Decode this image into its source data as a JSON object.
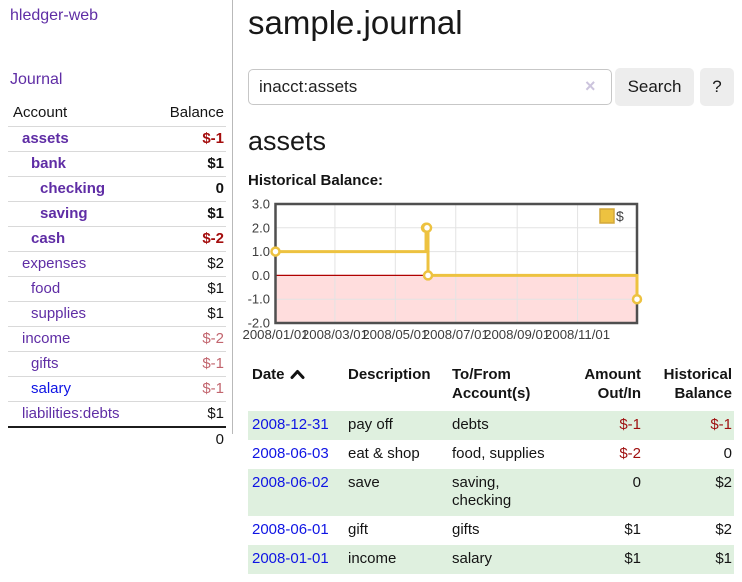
{
  "sidebar": {
    "app_title": "hledger-web",
    "journal_link": "Journal",
    "accounts": {
      "col_account": "Account",
      "col_balance": "Balance",
      "rows": [
        {
          "account": "assets",
          "balance": "$-1",
          "cls": "lvl0 b neg-strong"
        },
        {
          "account": "bank",
          "balance": "$1",
          "cls": "lvl1 b"
        },
        {
          "account": "checking",
          "balance": "0",
          "cls": "lvl2 b"
        },
        {
          "account": "saving",
          "balance": "$1",
          "cls": "lvl2 b"
        },
        {
          "account": "cash",
          "balance": "$-2",
          "cls": "lvl1 b neg-strong"
        },
        {
          "account": "expenses",
          "balance": "$2",
          "cls": "lvl0"
        },
        {
          "account": "food",
          "balance": "$1",
          "cls": "lvl1"
        },
        {
          "account": "supplies",
          "balance": "$1",
          "cls": "lvl1"
        },
        {
          "account": "income",
          "balance": "$-2",
          "cls": "lvl0 neg-soft"
        },
        {
          "account": "gifts",
          "balance": "$-1",
          "cls": "lvl1 neg-soft"
        },
        {
          "account": "salary",
          "balance": "$-1",
          "cls": "lvl1 neg-soft",
          "link_cls": "blue"
        },
        {
          "account": "liabilities:debts",
          "balance": "$1",
          "cls": "lvl0"
        }
      ],
      "total": "0"
    }
  },
  "main": {
    "title": "sample.journal",
    "search": {
      "value": "inacct:assets",
      "clear_label": "×",
      "clear_icon": "clear-cross",
      "button_label": "Search",
      "help_label": "?"
    },
    "section_title": "assets",
    "chart_title": "Historical Balance:"
  },
  "register": {
    "headers": {
      "date": "Date",
      "sort_icon": "chevron-up",
      "description": "Description",
      "tofrom": "To/From\nAccount(s)",
      "amount": "Amount\nOut/In",
      "balance": "Historical\nBalance"
    },
    "rows": [
      {
        "date": "2008-12-31",
        "description": "pay off",
        "accounts": "debts",
        "amount": "$-1",
        "balance": "$-1",
        "cls": "even",
        "amount_cls": "neg",
        "balance_cls": "neg"
      },
      {
        "date": "2008-06-03",
        "description": "eat & shop",
        "accounts": "food, supplies",
        "amount": "$-2",
        "balance": "0",
        "amount_cls": "neg"
      },
      {
        "date": "2008-06-02",
        "description": "save",
        "accounts": "saving,\nchecking",
        "amount": "0",
        "balance": "$2",
        "cls": "even"
      },
      {
        "date": "2008-06-01",
        "description": "gift",
        "accounts": "gifts",
        "amount": "$1",
        "balance": "$2"
      },
      {
        "date": "2008-01-01",
        "description": "income",
        "accounts": "salary",
        "amount": "$1",
        "balance": "$1",
        "cls": "even"
      }
    ]
  },
  "chart_data": {
    "type": "line",
    "style": "step",
    "title": "Historical Balance",
    "series": [
      {
        "name": "$",
        "color": "#EDC240",
        "points": [
          {
            "x": "2008-01-01",
            "y": 1
          },
          {
            "x": "2008-06-01",
            "y": 2
          },
          {
            "x": "2008-06-02",
            "y": 2
          },
          {
            "x": "2008-06-03",
            "y": 0
          },
          {
            "x": "2008-12-31",
            "y": -1
          }
        ]
      }
    ],
    "xlim": [
      "2008-01-01",
      "2008-12-31"
    ],
    "ylim": [
      -2,
      3
    ],
    "y_ticks": [
      "3.0",
      "2.0",
      "1.0",
      "0.0",
      "-1.0",
      "-2.0"
    ],
    "x_ticks": [
      "2008/01/01",
      "2008/03/01",
      "2008/05/01",
      "2008/07/01",
      "2008/09/01",
      "2008/11/01"
    ],
    "grid": true,
    "legend_position": "top-right",
    "negative_region_color": "#ffdddd",
    "zero_line_color": "#b00000",
    "grid_color": "#e3e3e3",
    "border_color": "#4f4f4f"
  },
  "colors": {
    "link_purple": "#5f2da5",
    "link_blue": "#0f14e4",
    "negative_strong": "#a40d0d",
    "negative_soft": "#c2656e",
    "row_stripe_green": "#dff0df",
    "chart_line_gold": "#EDC240"
  }
}
